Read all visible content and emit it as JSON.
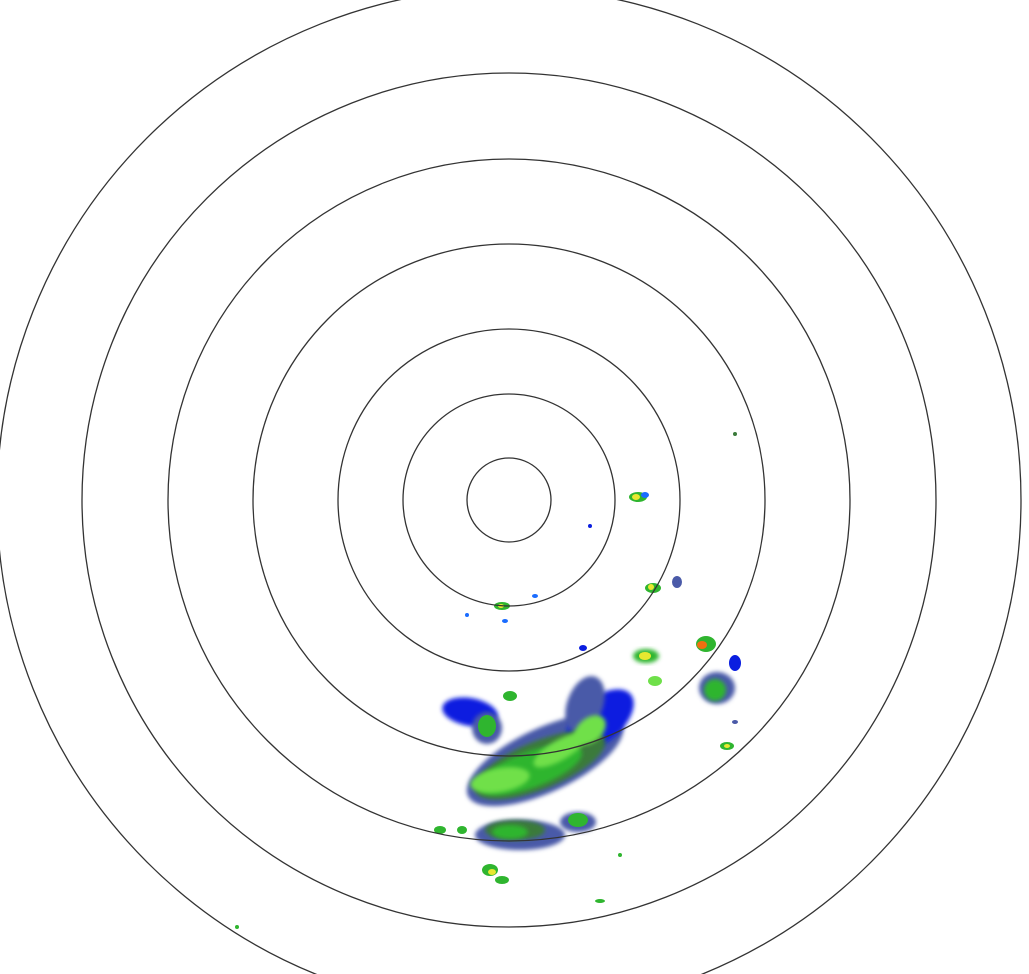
{
  "radar": {
    "range_ring_count": 7,
    "ring_color": "#333333",
    "background_color": "#ffffff",
    "reflectivity_colors": {
      "very_light": "#0a1ee0",
      "light_blue": "#1a6cff",
      "light": "#4a5aa8",
      "moderate_dark": "#3a7a3a",
      "moderate": "#2fb52f",
      "moderate_bright": "#6fe04a",
      "heavy": "#e8e830",
      "intense": "#f07010",
      "extreme": "#e02020"
    }
  }
}
